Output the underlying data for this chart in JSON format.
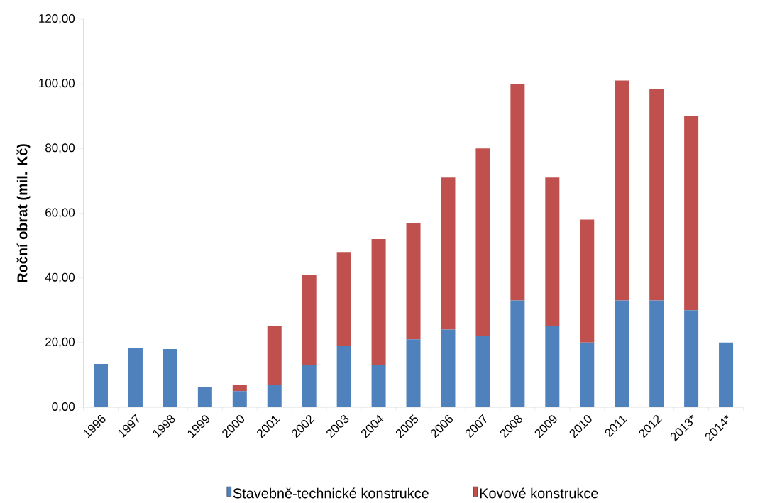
{
  "chart_data": {
    "type": "bar",
    "stacked": true,
    "ylabel": "Roční obrat (mil. Kč)",
    "legend": "bottom",
    "categories": [
      "1996",
      "1997",
      "1998",
      "1999",
      "2000",
      "2001",
      "2002",
      "2003",
      "2004",
      "2005",
      "2006",
      "2007",
      "2008",
      "2009",
      "2010",
      "2011",
      "2012",
      "2013*",
      "2014*"
    ],
    "series": [
      {
        "name": "Stavebně-technické konstrukce",
        "color": "#4f81bd",
        "values": [
          13.4,
          18.3,
          18,
          6.2,
          5,
          7,
          13,
          19,
          13,
          21,
          24,
          22,
          33,
          25,
          20,
          33,
          33,
          30,
          20
        ]
      },
      {
        "name": "Kovové konstrukce",
        "color": "#c0504d",
        "values": [
          null,
          null,
          null,
          null,
          2,
          18,
          28,
          29,
          39,
          36,
          47,
          58,
          67,
          46,
          38,
          68,
          65.5,
          60,
          null
        ]
      }
    ],
    "ylim": [
      0,
      120
    ],
    "yticks": [
      {
        "value": 0,
        "label": "0,00"
      },
      {
        "value": 20,
        "label": "20,00"
      },
      {
        "value": 40,
        "label": "40,00"
      },
      {
        "value": 60,
        "label": "60,00"
      },
      {
        "value": 80,
        "label": "80,00"
      },
      {
        "value": 100,
        "label": "100,00"
      },
      {
        "value": 120,
        "label": "120,00"
      }
    ]
  }
}
